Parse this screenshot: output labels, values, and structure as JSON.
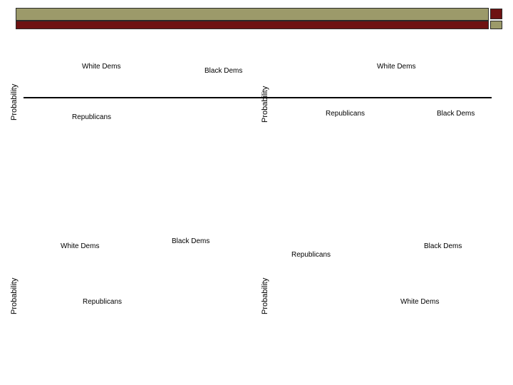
{
  "colors": {
    "banner_top": "#9c9a6a",
    "banner_bottom": "#6e1212",
    "banner_square_top": "#6e1212",
    "banner_square_bottom": "#9c9a6a",
    "divider": "#000000"
  },
  "panels": [
    {
      "ylabel": "Probability",
      "labels": [
        "White Dems",
        "Black Dems",
        "Republicans"
      ]
    },
    {
      "ylabel": "Probability",
      "labels": [
        "White Dems",
        "Republicans",
        "Black Dems"
      ]
    },
    {
      "ylabel": "Probability",
      "labels": [
        "White Dems",
        "Black Dems",
        "Republicans"
      ]
    },
    {
      "ylabel": "Probability",
      "labels": [
        "Black Dems",
        "Republicans",
        "White Dems"
      ]
    }
  ]
}
